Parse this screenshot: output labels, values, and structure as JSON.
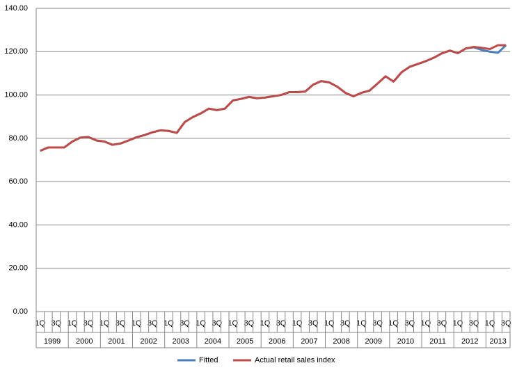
{
  "chart_data": {
    "type": "line",
    "categories": [
      "1Q",
      null,
      "3Q",
      null,
      "1Q",
      null,
      "3Q",
      null,
      "1Q",
      null,
      "3Q",
      null,
      "1Q",
      null,
      "3Q",
      null,
      "1Q",
      null,
      "3Q",
      null,
      "1Q",
      null,
      "3Q",
      null,
      "1Q",
      null,
      "3Q",
      null,
      "1Q",
      null,
      "3Q",
      null,
      "1Q",
      null,
      "3Q",
      null,
      "1Q",
      null,
      "3Q",
      null,
      "1Q",
      null,
      "3Q",
      null,
      "1Q",
      null,
      "3Q",
      null,
      "1Q",
      null,
      "3Q",
      null,
      "1Q",
      null,
      "3Q",
      null,
      "1Q",
      null,
      "3Q"
    ],
    "years": [
      "1999",
      "2000",
      "2001",
      "2002",
      "2003",
      "2004",
      "2005",
      "2006",
      "2007",
      "2008",
      "2009",
      "2010",
      "2011",
      "2012",
      "2013"
    ],
    "series": [
      {
        "name": "Fitted",
        "color": "#4a7ebb",
        "values": [
          74.2,
          75.8,
          75.8,
          75.8,
          78.5,
          80.3,
          80.6,
          79.0,
          78.5,
          77.0,
          77.6,
          79.0,
          80.5,
          81.5,
          82.8,
          83.7,
          83.4,
          82.5,
          87.5,
          89.8,
          91.5,
          93.7,
          93.0,
          93.7,
          97.5,
          98.2,
          99.1,
          98.5,
          98.8,
          99.4,
          100.0,
          101.3,
          101.3,
          101.6,
          104.8,
          106.4,
          105.8,
          103.8,
          101.0,
          99.4,
          101.0,
          102.0,
          105.3,
          108.6,
          106.2,
          110.5,
          113.0,
          114.3,
          115.6,
          117.2,
          119.2,
          120.5,
          119.3,
          121.5,
          122.0,
          120.8,
          120.0,
          119.5,
          123.0
        ]
      },
      {
        "name": "Actual retail sales index",
        "color": "#be4b48",
        "values": [
          74.2,
          75.8,
          75.8,
          75.8,
          78.5,
          80.3,
          80.6,
          79.0,
          78.5,
          77.0,
          77.6,
          79.0,
          80.5,
          81.5,
          82.8,
          83.7,
          83.4,
          82.5,
          87.5,
          89.8,
          91.5,
          93.7,
          93.0,
          93.7,
          97.5,
          98.2,
          99.1,
          98.5,
          98.8,
          99.4,
          100.0,
          101.3,
          101.3,
          101.6,
          104.8,
          106.4,
          105.8,
          103.8,
          101.0,
          99.4,
          101.0,
          102.0,
          105.3,
          108.6,
          106.2,
          110.5,
          113.0,
          114.3,
          115.6,
          117.2,
          119.2,
          120.5,
          119.3,
          121.5,
          122.2,
          121.8,
          121.2,
          123.0,
          123.0
        ]
      }
    ],
    "ylim": [
      0,
      140
    ],
    "yticks": [
      {
        "value": 0,
        "label": "0.00"
      },
      {
        "value": 20,
        "label": "20.00"
      },
      {
        "value": 40,
        "label": "40.00"
      },
      {
        "value": 60,
        "label": "60.00"
      },
      {
        "value": 80,
        "label": "80.00"
      },
      {
        "value": 100,
        "label": "100.00"
      },
      {
        "value": 120,
        "label": "120.00"
      },
      {
        "value": 140,
        "label": "140.00"
      }
    ],
    "grid": true,
    "legend": "bottom"
  }
}
